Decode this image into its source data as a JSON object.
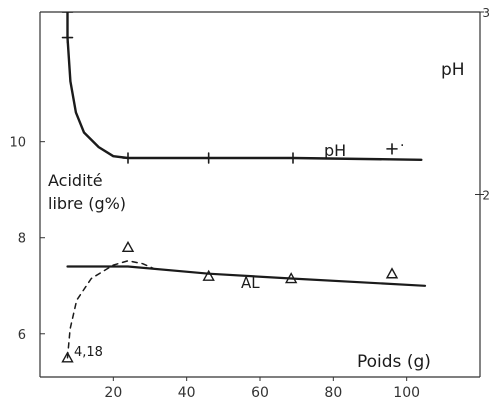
{
  "chart_data": {
    "type": "line",
    "xlabel": "Poids (g)",
    "ylabel_left": "Acidité libre (g%)",
    "ylabel_right": "pH",
    "x_ticks": [
      "20",
      "40",
      "60",
      "80",
      "100"
    ],
    "left_ticks": [
      "6",
      "8",
      "10"
    ],
    "right_ticks": [
      "2",
      "3"
    ],
    "xlim": [
      0,
      120
    ],
    "ylim_left": [
      5.1,
      12.7
    ],
    "ylim_right": [
      1.0,
      3.0
    ],
    "grid": false,
    "legend": "none",
    "series": [
      {
        "name": "pH",
        "axis": "right",
        "points": [
          {
            "x": 7.5,
            "y": 3.0
          },
          {
            "x": 7.5,
            "y": 2.86
          },
          {
            "x": 24,
            "y": 2.2
          },
          {
            "x": 46,
            "y": 2.2
          },
          {
            "x": 69,
            "y": 2.2
          },
          {
            "x": 96,
            "y": 2.25
          }
        ],
        "curve": [
          [
            7.5,
            3.0
          ],
          [
            7.5,
            2.86
          ],
          [
            8.3,
            2.62
          ],
          [
            9.8,
            2.45
          ],
          [
            12,
            2.34
          ],
          [
            16,
            2.26
          ],
          [
            20,
            2.21
          ],
          [
            24,
            2.2
          ],
          [
            46,
            2.2
          ],
          [
            69,
            2.2
          ],
          [
            104,
            2.19
          ]
        ],
        "label": "pH",
        "extra_mark": "·"
      },
      {
        "name": "AL",
        "axis": "left",
        "points": [
          {
            "x": 7.5,
            "y": 5.5
          },
          {
            "x": 24,
            "y": 7.8
          },
          {
            "x": 46,
            "y": 7.2
          },
          {
            "x": 68.5,
            "y": 7.15
          },
          {
            "x": 96,
            "y": 7.25
          }
        ],
        "curve": [
          [
            7.5,
            7.4
          ],
          [
            24,
            7.4
          ],
          [
            46,
            7.25
          ],
          [
            68.5,
            7.15
          ],
          [
            105,
            7.0
          ]
        ],
        "dashed_curve": [
          [
            7.5,
            5.5
          ],
          [
            8.2,
            6.1
          ],
          [
            10,
            6.7
          ],
          [
            14,
            7.15
          ],
          [
            20,
            7.43
          ],
          [
            24,
            7.52
          ],
          [
            28,
            7.46
          ],
          [
            31,
            7.36
          ]
        ],
        "label": "AL",
        "annotation": "4,18"
      }
    ]
  },
  "colors": {
    "ink": "#1b1b1b",
    "axis": "#333333",
    "background": "#ffffff"
  }
}
